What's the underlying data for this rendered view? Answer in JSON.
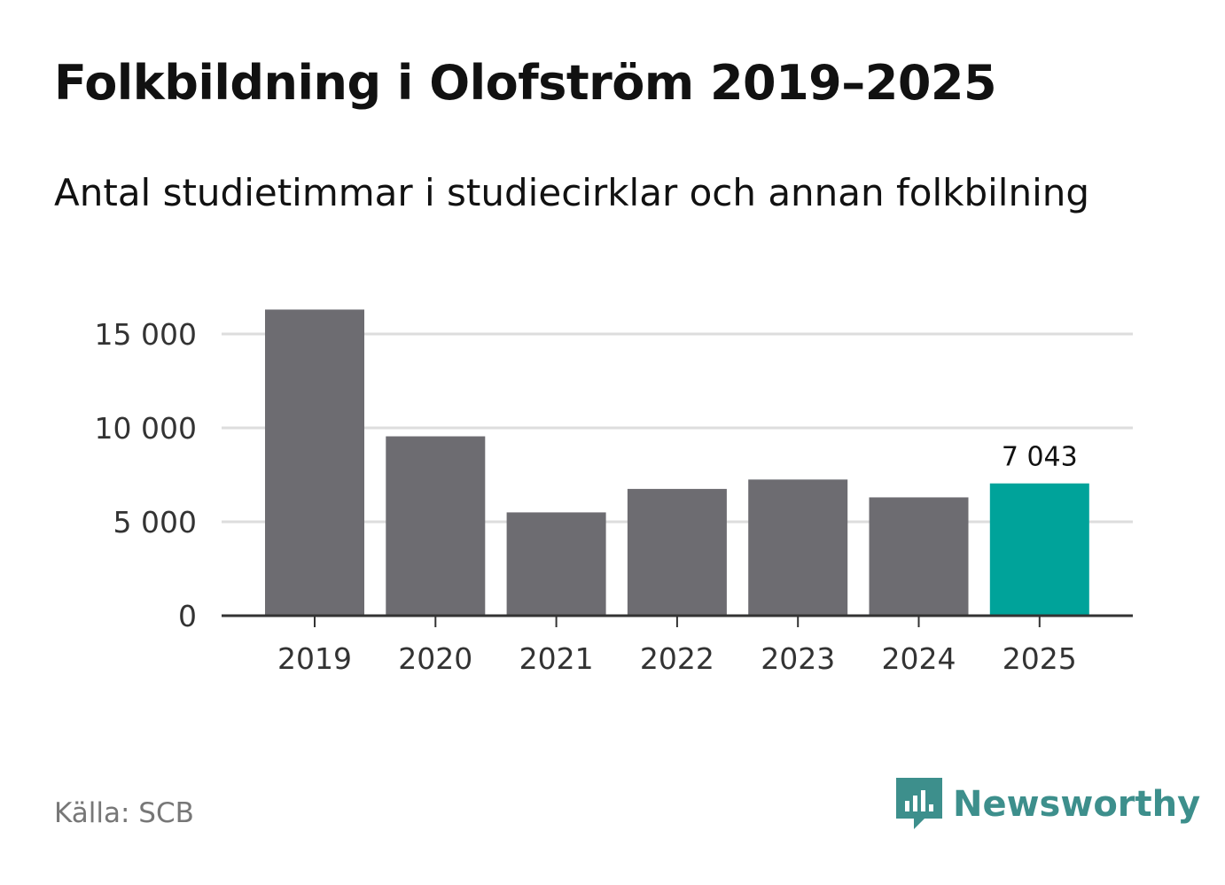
{
  "title": "Folkbildning i Olofström 2019–2025",
  "subtitle": "Antal studietimmar i studiecirklar och annan folkbilning",
  "source": "Källa: SCB",
  "brand": {
    "name": "Newsworthy",
    "icon": "newsworthy-logo-icon",
    "color": "#3d8f8c"
  },
  "colors": {
    "bar": "#6d6c71",
    "highlight": "#00a39a",
    "grid": "#dddddd",
    "axis": "#333333"
  },
  "chart_data": {
    "type": "bar",
    "title": "Folkbildning i Olofström 2019–2025",
    "xlabel": "",
    "ylabel": "",
    "categories": [
      "2019",
      "2020",
      "2021",
      "2022",
      "2023",
      "2024",
      "2025"
    ],
    "values": [
      16300,
      9550,
      5500,
      6750,
      7250,
      6300,
      7043
    ],
    "highlight_index": 6,
    "data_labels": [
      {
        "index": 6,
        "text": "7 043"
      }
    ],
    "yticks": [
      0,
      5000,
      10000,
      15000
    ],
    "ytick_labels": [
      "0",
      "5 000",
      "10 000",
      "15 000"
    ],
    "ylim": [
      0,
      16300
    ],
    "grid": true
  }
}
